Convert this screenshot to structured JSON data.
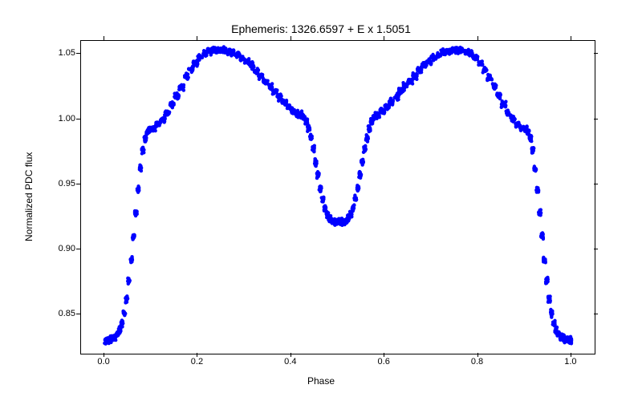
{
  "chart": {
    "type": "scatter",
    "title": "Ephemeris: 1326.6597 + E x 1.5051",
    "title_fontsize": 14,
    "xlabel": "Phase",
    "ylabel": "Normalized PDC flux",
    "label_fontsize": 12,
    "tick_fontsize": 11,
    "xlim": [
      -0.05,
      1.05
    ],
    "ylim": [
      0.82,
      1.06
    ],
    "xticks": [
      0.0,
      0.2,
      0.4,
      0.6,
      0.8,
      1.0
    ],
    "yticks": [
      0.85,
      0.9,
      0.95,
      1.0,
      1.05
    ],
    "ytick_labels": [
      "0.85",
      "0.90",
      "0.95",
      "1.00",
      "1.05"
    ],
    "xtick_labels": [
      "0.0",
      "0.2",
      "0.4",
      "0.6",
      "0.8",
      "1.0"
    ],
    "background_color": "#ffffff",
    "border_color": "#000000",
    "marker_color": "#0000ff",
    "marker_size": 2.2,
    "data_x": [
      0.0,
      0.005,
      0.01,
      0.015,
      0.02,
      0.025,
      0.03,
      0.035,
      0.04,
      0.045,
      0.05,
      0.055,
      0.06,
      0.065,
      0.07,
      0.075,
      0.08,
      0.085,
      0.09,
      0.095,
      0.1,
      0.11,
      0.12,
      0.13,
      0.14,
      0.15,
      0.16,
      0.17,
      0.18,
      0.19,
      0.2,
      0.21,
      0.22,
      0.23,
      0.24,
      0.25,
      0.26,
      0.27,
      0.28,
      0.29,
      0.3,
      0.31,
      0.32,
      0.33,
      0.34,
      0.35,
      0.36,
      0.37,
      0.38,
      0.39,
      0.4,
      0.41,
      0.42,
      0.425,
      0.43,
      0.435,
      0.44,
      0.445,
      0.45,
      0.455,
      0.46,
      0.465,
      0.47,
      0.475,
      0.48,
      0.485,
      0.49,
      0.495,
      0.5,
      0.505,
      0.51,
      0.515,
      0.52,
      0.525,
      0.53,
      0.535,
      0.54,
      0.545,
      0.55,
      0.555,
      0.56,
      0.565,
      0.57,
      0.575,
      0.58,
      0.59,
      0.6,
      0.61,
      0.62,
      0.63,
      0.64,
      0.65,
      0.66,
      0.67,
      0.68,
      0.69,
      0.7,
      0.71,
      0.72,
      0.73,
      0.74,
      0.75,
      0.76,
      0.77,
      0.78,
      0.79,
      0.8,
      0.81,
      0.82,
      0.83,
      0.84,
      0.85,
      0.86,
      0.87,
      0.88,
      0.89,
      0.9,
      0.905,
      0.91,
      0.915,
      0.92,
      0.925,
      0.93,
      0.935,
      0.94,
      0.945,
      0.95,
      0.955,
      0.96,
      0.965,
      0.97,
      0.975,
      0.98,
      0.985,
      0.99,
      0.995,
      1.0
    ],
    "data_y": [
      0.83,
      0.83,
      0.831,
      0.832,
      0.833,
      0.835,
      0.838,
      0.843,
      0.851,
      0.862,
      0.876,
      0.892,
      0.91,
      0.928,
      0.946,
      0.962,
      0.976,
      0.985,
      0.99,
      0.992,
      0.993,
      0.996,
      1.0,
      1.005,
      1.011,
      1.018,
      1.025,
      1.032,
      1.038,
      1.043,
      1.047,
      1.05,
      1.052,
      1.053,
      1.053,
      1.053,
      1.052,
      1.051,
      1.049,
      1.047,
      1.044,
      1.041,
      1.037,
      1.033,
      1.029,
      1.025,
      1.021,
      1.017,
      1.013,
      1.009,
      1.006,
      1.004,
      1.003,
      1.001,
      0.998,
      0.993,
      0.986,
      0.977,
      0.967,
      0.957,
      0.947,
      0.939,
      0.932,
      0.927,
      0.924,
      0.922,
      0.921,
      0.921,
      0.921,
      0.921,
      0.921,
      0.922,
      0.924,
      0.927,
      0.932,
      0.939,
      0.947,
      0.957,
      0.967,
      0.977,
      0.986,
      0.993,
      0.998,
      1.001,
      1.003,
      1.006,
      1.009,
      1.013,
      1.017,
      1.021,
      1.025,
      1.029,
      1.033,
      1.037,
      1.041,
      1.044,
      1.047,
      1.049,
      1.051,
      1.052,
      1.053,
      1.053,
      1.053,
      1.052,
      1.05,
      1.047,
      1.043,
      1.038,
      1.032,
      1.025,
      1.018,
      1.011,
      1.005,
      1.0,
      0.996,
      0.993,
      0.992,
      0.99,
      0.985,
      0.976,
      0.962,
      0.946,
      0.928,
      0.91,
      0.892,
      0.876,
      0.862,
      0.851,
      0.843,
      0.838,
      0.835,
      0.833,
      0.832,
      0.831,
      0.83,
      0.83,
      0.83
    ]
  }
}
